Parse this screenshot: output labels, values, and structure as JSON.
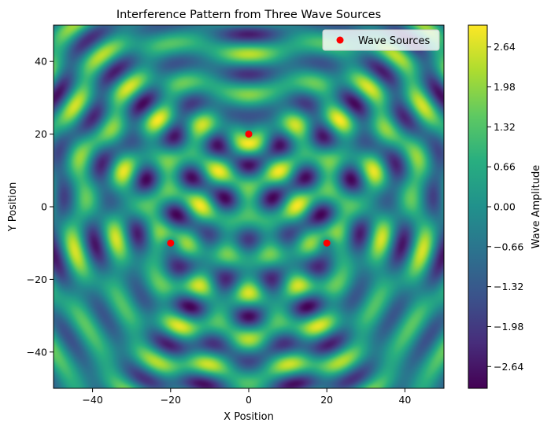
{
  "chart_data": {
    "type": "heatmap",
    "title": "Interference Pattern from Three Wave Sources",
    "xlabel": "X Position",
    "ylabel": "Y Position",
    "xlim": [
      -50,
      50
    ],
    "ylim": [
      -50,
      50
    ],
    "xticks": [
      -40,
      -20,
      0,
      20,
      40
    ],
    "yticks": [
      -40,
      -20,
      0,
      20,
      40
    ],
    "xtick_labels": [
      "−40",
      "−20",
      "0",
      "20",
      "40"
    ],
    "ytick_labels": [
      "−40",
      "−20",
      "0",
      "20",
      "40"
    ],
    "colormap": "viridis",
    "colorbar": {
      "label": "Wave Amplitude",
      "range": [
        -3.0,
        3.0
      ],
      "ticks": [
        2.64,
        1.98,
        1.32,
        0.66,
        0.0,
        -0.66,
        -1.32,
        -1.98,
        -2.64
      ],
      "tick_labels": [
        "2.64",
        "1.98",
        "1.32",
        "0.66",
        "0.00",
        "−0.66",
        "−1.32",
        "−1.98",
        "−2.64"
      ]
    },
    "sources": {
      "name": "Wave Sources",
      "color": "#ff0000",
      "points": [
        {
          "x": 0,
          "y": 20
        },
        {
          "x": -20,
          "y": -10
        },
        {
          "x": 20,
          "y": -10
        }
      ]
    },
    "wave_k": 0.6,
    "legend_position": "top-right",
    "grid": false
  }
}
